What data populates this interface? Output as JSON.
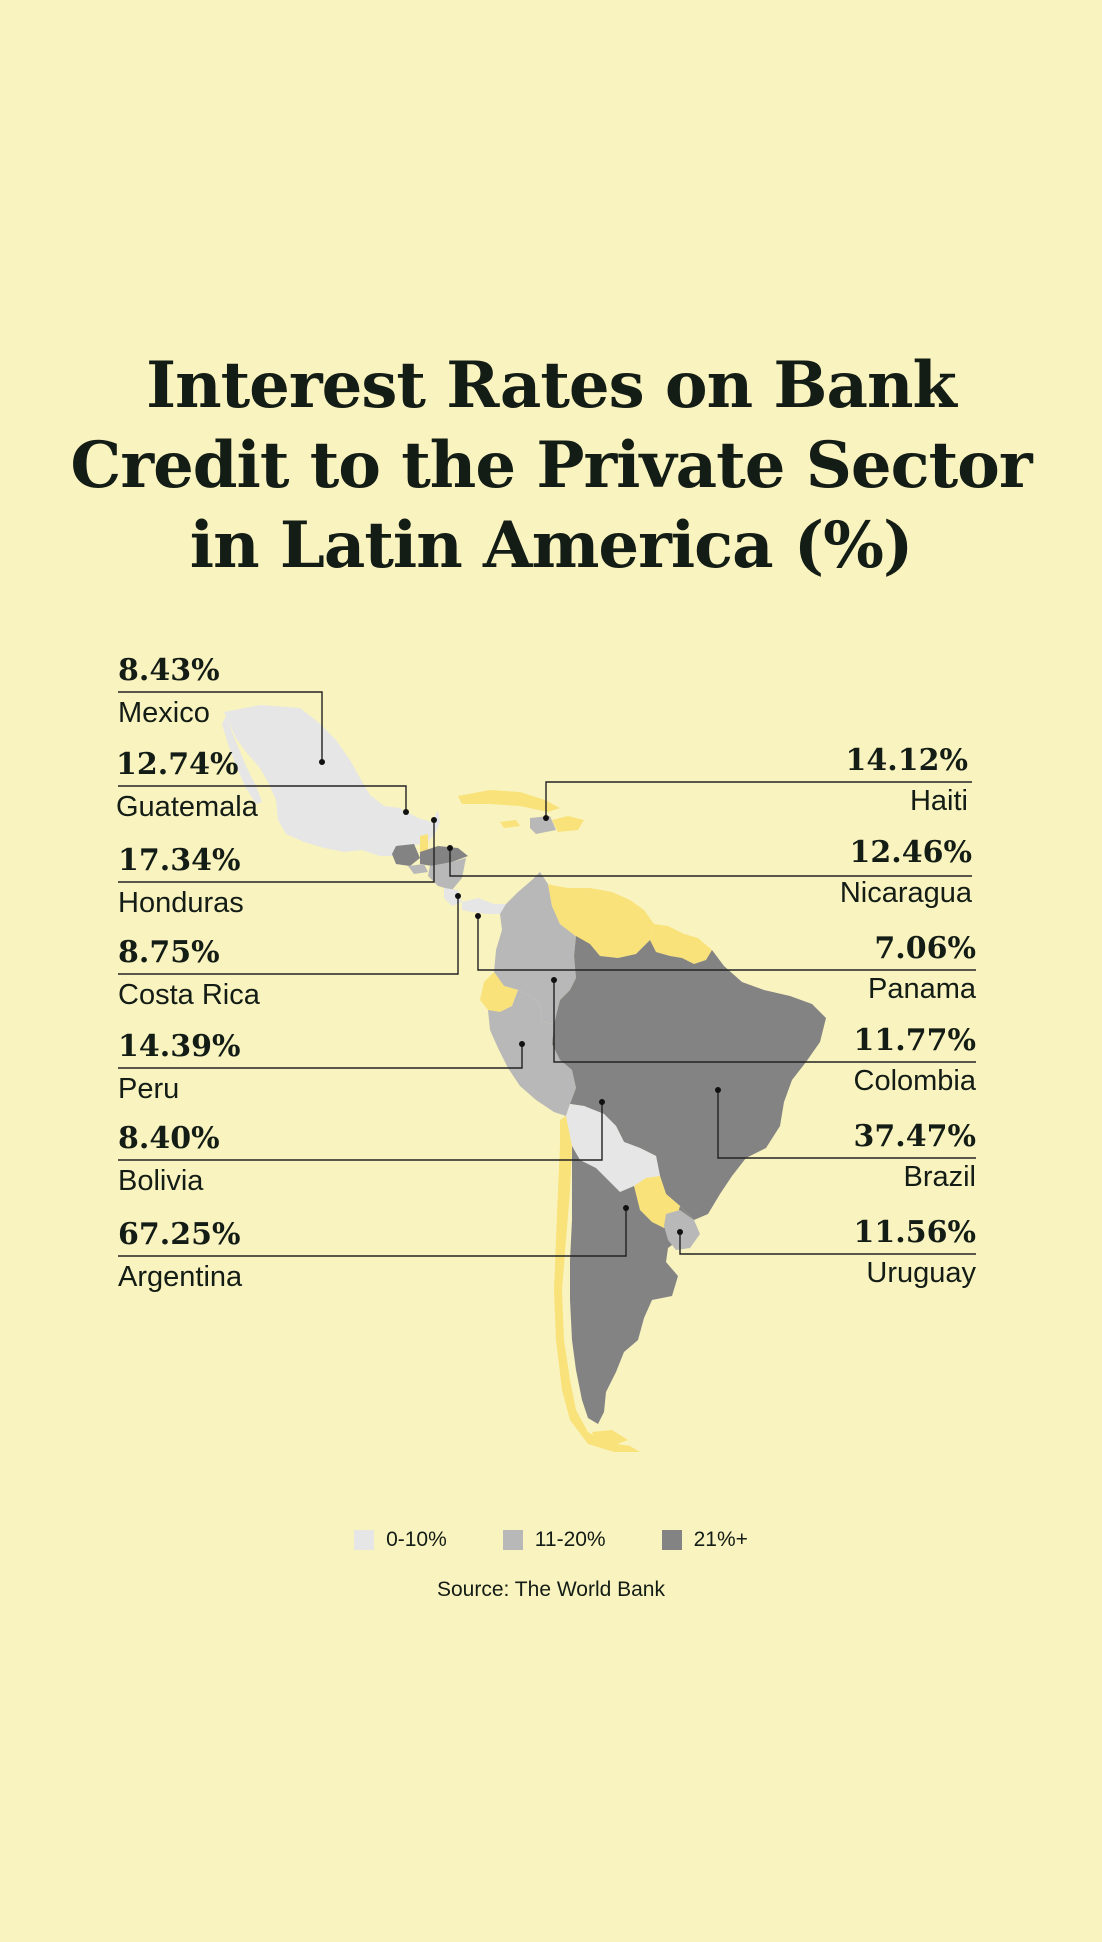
{
  "title": {
    "line1": "Interest Rates on Bank",
    "line2": "Credit to the Private Sector",
    "line3": "in Latin America (%)"
  },
  "colors": {
    "background": "#f9f3bf",
    "band_0_10": "#e6e6e6",
    "band_11_20": "#b8b8b8",
    "band_21_plus": "#838383",
    "no_data": "#f9e27a",
    "text": "#131c15"
  },
  "countries": [
    {
      "name": "Mexico",
      "value": "8.43%",
      "band": "0-10%"
    },
    {
      "name": "Guatemala",
      "value": "12.74%",
      "band": "11-20%"
    },
    {
      "name": "Honduras",
      "value": "17.34%",
      "band": "11-20%"
    },
    {
      "name": "Costa Rica",
      "value": "8.75%",
      "band": "0-10%"
    },
    {
      "name": "Peru",
      "value": "14.39%",
      "band": "11-20%"
    },
    {
      "name": "Bolivia",
      "value": "8.40%",
      "band": "0-10%"
    },
    {
      "name": "Argentina",
      "value": "67.25%",
      "band": "21%+"
    },
    {
      "name": "Haiti",
      "value": "14.12%",
      "band": "11-20%"
    },
    {
      "name": "Nicaragua",
      "value": "12.46%",
      "band": "11-20%"
    },
    {
      "name": "Panama",
      "value": "7.06%",
      "band": "0-10%"
    },
    {
      "name": "Colombia",
      "value": "11.77%",
      "band": "11-20%"
    },
    {
      "name": "Brazil",
      "value": "37.47%",
      "band": "21%+"
    },
    {
      "name": "Uruguay",
      "value": "11.56%",
      "band": "11-20%"
    }
  ],
  "legend": [
    {
      "label": "0-10%",
      "color": "#e6e6e6"
    },
    {
      "label": "11-20%",
      "color": "#b8b8b8"
    },
    {
      "label": "21%+",
      "color": "#838383"
    }
  ],
  "source": "Source: The World Bank"
}
